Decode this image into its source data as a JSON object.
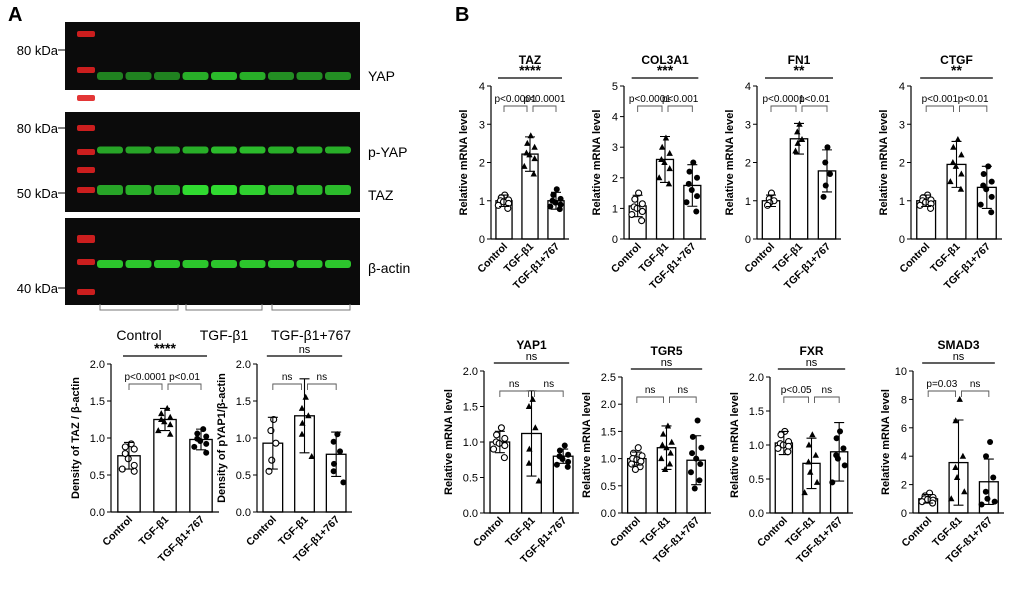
{
  "panels": {
    "a": "A",
    "b": "B"
  },
  "blot": {
    "markers": [
      "80 kDa",
      "80 kDa",
      "50 kDa",
      "40 kDa"
    ],
    "band_labels": [
      "YAP",
      "p-YAP",
      "TAZ",
      "β-actin"
    ],
    "groups": [
      "Control",
      "TGF-β1",
      "TGF-β1+767"
    ],
    "colors": {
      "background": "#0b0b0b",
      "band": "#33e633",
      "ladder": "#e02020"
    }
  },
  "chart_data": [
    {
      "type": "bar",
      "panel": "A",
      "categories": [
        "Control",
        "TGF-β1",
        "TGF-β1+767"
      ],
      "values": [
        0.76,
        1.25,
        0.98
      ],
      "errors": [
        0.18,
        0.15,
        0.14
      ],
      "points": [
        [
          0.92,
          0.88,
          0.85,
          0.79,
          0.72,
          0.63,
          0.58,
          0.55
        ],
        [
          1.4,
          1.33,
          1.28,
          1.25,
          1.22,
          1.18,
          1.1,
          1.05
        ],
        [
          1.12,
          1.06,
          1.02,
          0.99,
          0.96,
          0.92,
          0.88,
          0.8
        ]
      ],
      "ylabel": "Density of TAZ / β-actin",
      "ylim": [
        0,
        2.0
      ],
      "yticks": [
        "0.0",
        "0.5",
        "1.0",
        "1.5",
        "2.0"
      ],
      "brackets": [
        {
          "from": 0,
          "to": 2,
          "label": "****"
        },
        {
          "from": 0,
          "to": 1,
          "label": "p<0.0001"
        },
        {
          "from": 1,
          "to": 2,
          "label": "p<0.01"
        }
      ]
    },
    {
      "type": "bar",
      "panel": "A",
      "categories": [
        "Control",
        "TGF-β1",
        "TGF-β1+767"
      ],
      "values": [
        0.93,
        1.3,
        0.78
      ],
      "errors": [
        0.35,
        0.5,
        0.3
      ],
      "points": [
        [
          1.25,
          1.1,
          0.93,
          0.7,
          0.55
        ],
        [
          1.55,
          1.4,
          1.3,
          1.2,
          1.05,
          0.75
        ],
        [
          1.05,
          0.95,
          0.82,
          0.65,
          0.55,
          0.4
        ]
      ],
      "ylabel": "Density of pYAP1/β-actin",
      "ylim": [
        0,
        2.0
      ],
      "yticks": [
        "0.0",
        "0.5",
        "1.0",
        "1.5",
        "2.0"
      ],
      "brackets": [
        {
          "from": 0,
          "to": 2,
          "label": "ns"
        },
        {
          "from": 0,
          "to": 1,
          "label": "ns"
        },
        {
          "from": 1,
          "to": 2,
          "label": "ns"
        }
      ]
    },
    {
      "type": "bar",
      "panel": "B",
      "title": "TAZ",
      "categories": [
        "Control",
        "TGF-β1",
        "TGF-β1+767"
      ],
      "values": [
        1.0,
        2.22,
        1.0
      ],
      "errors": [
        0.15,
        0.45,
        0.22
      ],
      "points": [
        [
          1.15,
          1.08,
          1.02,
          1.0,
          0.97,
          0.93,
          0.88,
          0.8
        ],
        [
          2.7,
          2.5,
          2.4,
          2.25,
          2.2,
          2.1,
          1.9,
          1.7
        ],
        [
          1.3,
          1.15,
          1.05,
          1.0,
          0.95,
          0.9,
          0.85,
          0.78
        ]
      ],
      "ylabel": "Relative mRNA level",
      "ylim": [
        0,
        4
      ],
      "yticks": [
        "0",
        "1",
        "2",
        "3",
        "4"
      ],
      "brackets": [
        {
          "from": 0,
          "to": 2,
          "label": "****"
        },
        {
          "from": 0,
          "to": 1,
          "label": "p<0.0001"
        },
        {
          "from": 1,
          "to": 2,
          "label": "p<0.0001"
        }
      ]
    },
    {
      "type": "bar",
      "panel": "B",
      "title": "COL3A1",
      "categories": [
        "Control",
        "TGF-β1",
        "TGF-β1+767"
      ],
      "values": [
        1.08,
        2.6,
        1.75
      ],
      "errors": [
        0.35,
        0.75,
        0.68
      ],
      "points": [
        [
          1.5,
          1.3,
          1.15,
          1.05,
          1.0,
          0.9,
          0.8,
          0.6
        ],
        [
          3.3,
          3.0,
          2.8,
          2.6,
          2.5,
          2.3,
          2.0,
          1.8
        ],
        [
          2.5,
          2.2,
          2.0,
          1.8,
          1.6,
          1.4,
          1.2,
          0.9
        ]
      ],
      "ylabel": "Relative mRNA level",
      "ylim": [
        0,
        5
      ],
      "yticks": [
        "0",
        "1",
        "2",
        "3",
        "4",
        "5"
      ],
      "brackets": [
        {
          "from": 0,
          "to": 2,
          "label": "***"
        },
        {
          "from": 0,
          "to": 1,
          "label": "p<0.0001"
        },
        {
          "from": 1,
          "to": 2,
          "label": "p<0.001"
        }
      ]
    },
    {
      "type": "bar",
      "panel": "B",
      "title": "FN1",
      "categories": [
        "Control",
        "TGF-β1",
        "TGF-β1+767"
      ],
      "values": [
        1.0,
        2.62,
        1.78
      ],
      "errors": [
        0.15,
        0.4,
        0.55
      ],
      "points": [
        [
          1.2,
          1.05,
          1.0,
          0.95,
          0.88
        ],
        [
          3.0,
          2.8,
          2.6,
          2.5,
          2.3
        ],
        [
          2.4,
          2.0,
          1.7,
          1.4,
          1.1
        ]
      ],
      "ylabel": "Relative mRNA level",
      "ylim": [
        0,
        4
      ],
      "yticks": [
        "0",
        "1",
        "2",
        "3",
        "4"
      ],
      "brackets": [
        {
          "from": 0,
          "to": 2,
          "label": "**"
        },
        {
          "from": 0,
          "to": 1,
          "label": "p<0.0001"
        },
        {
          "from": 1,
          "to": 2,
          "label": "p<0.01"
        }
      ]
    },
    {
      "type": "bar",
      "panel": "B",
      "title": "CTGF",
      "categories": [
        "Control",
        "TGF-β1",
        "TGF-β1+767"
      ],
      "values": [
        1.0,
        1.95,
        1.35
      ],
      "errors": [
        0.15,
        0.6,
        0.55
      ],
      "points": [
        [
          1.15,
          1.08,
          1.02,
          1.0,
          0.96,
          0.92,
          0.88,
          0.8
        ],
        [
          2.6,
          2.4,
          2.2,
          2.0,
          1.9,
          1.7,
          1.5,
          1.3
        ],
        [
          1.9,
          1.7,
          1.5,
          1.4,
          1.3,
          1.1,
          0.9,
          0.7
        ]
      ],
      "ylabel": "Relative mRNA level",
      "ylim": [
        0,
        4
      ],
      "yticks": [
        "0",
        "1",
        "2",
        "3",
        "4"
      ],
      "brackets": [
        {
          "from": 0,
          "to": 2,
          "label": "**"
        },
        {
          "from": 0,
          "to": 1,
          "label": "p<0.001"
        },
        {
          "from": 1,
          "to": 2,
          "label": "p<0.01"
        }
      ]
    },
    {
      "type": "bar",
      "panel": "B",
      "title": "YAP1",
      "categories": [
        "Control",
        "TGF-β1",
        "TGF-β1+767"
      ],
      "values": [
        1.0,
        1.12,
        0.8
      ],
      "errors": [
        0.15,
        0.6,
        0.1
      ],
      "points": [
        [
          1.2,
          1.1,
          1.05,
          1.0,
          0.98,
          0.95,
          0.9,
          0.78
        ],
        [
          1.6,
          1.5,
          1.2,
          0.9,
          0.7,
          0.45
        ],
        [
          0.95,
          0.88,
          0.82,
          0.8,
          0.76,
          0.72,
          0.68,
          0.65
        ]
      ],
      "ylabel": "Relative mRNA level",
      "ylim": [
        0,
        2.0
      ],
      "yticks": [
        "0.0",
        "0.5",
        "1.0",
        "1.5",
        "2.0"
      ],
      "brackets": [
        {
          "from": 0,
          "to": 2,
          "label": "ns"
        },
        {
          "from": 0,
          "to": 1,
          "label": "ns"
        },
        {
          "from": 1,
          "to": 2,
          "label": "ns"
        }
      ]
    },
    {
      "type": "bar",
      "panel": "B",
      "title": "TGR5",
      "categories": [
        "Control",
        "TGF-ß1",
        "TGF-ß1+767"
      ],
      "values": [
        1.0,
        1.2,
        0.97
      ],
      "errors": [
        0.12,
        0.4,
        0.45
      ],
      "points": [
        [
          1.2,
          1.1,
          1.05,
          1.0,
          0.98,
          0.95,
          0.9,
          0.85,
          0.8
        ],
        [
          1.6,
          1.45,
          1.3,
          1.25,
          1.2,
          1.1,
          1.0,
          0.9,
          0.8
        ],
        [
          1.7,
          1.4,
          1.2,
          1.1,
          1.0,
          0.9,
          0.75,
          0.6,
          0.45
        ]
      ],
      "ylabel": "Relative mRNA level",
      "ylim": [
        0,
        2.5
      ],
      "yticks": [
        "0.0",
        "0.5",
        "1.0",
        "1.5",
        "2.0",
        "2.5"
      ],
      "brackets": [
        {
          "from": 0,
          "to": 2,
          "label": "ns"
        },
        {
          "from": 0,
          "to": 1,
          "label": "ns"
        },
        {
          "from": 1,
          "to": 2,
          "label": "ns"
        }
      ]
    },
    {
      "type": "bar",
      "panel": "B",
      "title": "FXR",
      "categories": [
        "Control",
        "TGF-ß1",
        "TGF-ß1+767"
      ],
      "values": [
        1.03,
        0.73,
        0.9
      ],
      "errors": [
        0.17,
        0.37,
        0.43
      ],
      "points": [
        [
          1.2,
          1.15,
          1.05,
          1.02,
          1.0,
          0.98,
          0.95,
          0.9
        ],
        [
          1.15,
          1.0,
          0.85,
          0.75,
          0.6,
          0.45,
          0.3
        ],
        [
          1.2,
          1.1,
          0.95,
          0.85,
          0.8,
          0.7,
          0.45
        ]
      ],
      "ylabel": "Relative mRNA level",
      "ylim": [
        0,
        2.0
      ],
      "yticks": [
        "0.0",
        "0.5",
        "1.0",
        "1.5",
        "2.0"
      ],
      "brackets": [
        {
          "from": 0,
          "to": 2,
          "label": "ns"
        },
        {
          "from": 0,
          "to": 1,
          "label": "p<0.05"
        },
        {
          "from": 1,
          "to": 2,
          "label": "ns"
        }
      ]
    },
    {
      "type": "bar",
      "panel": "B",
      "title": "SMAD3",
      "categories": [
        "Control",
        "TGF-ß1",
        "TGF-ß1+767"
      ],
      "values": [
        1.0,
        3.55,
        2.2
      ],
      "errors": [
        0.3,
        3.0,
        1.6
      ],
      "points": [
        [
          1.4,
          1.2,
          1.1,
          1.0,
          0.95,
          0.9,
          0.8,
          0.7
        ],
        [
          8.0,
          6.5,
          4.0,
          3.2,
          2.5,
          1.5,
          1.0
        ],
        [
          5.0,
          4.0,
          2.5,
          1.5,
          1.0,
          0.8,
          0.6
        ]
      ],
      "ylabel": "Relative mRNA level",
      "ylim": [
        0,
        10
      ],
      "yticks": [
        "0",
        "2",
        "4",
        "6",
        "8",
        "10"
      ],
      "brackets": [
        {
          "from": 0,
          "to": 2,
          "label": "ns"
        },
        {
          "from": 0,
          "to": 1,
          "label": "p=0.03"
        },
        {
          "from": 1,
          "to": 2,
          "label": "ns"
        }
      ]
    }
  ]
}
